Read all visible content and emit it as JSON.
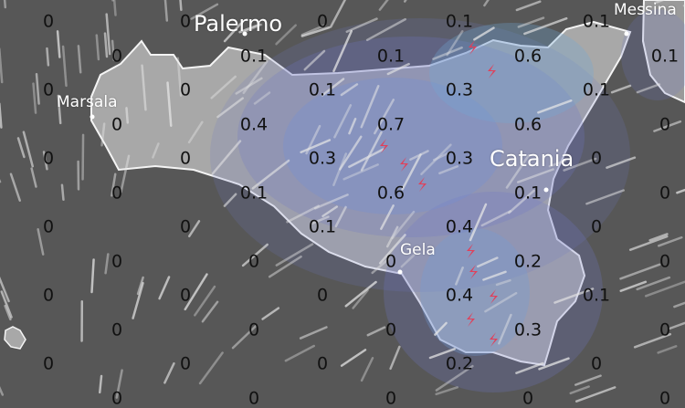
{
  "map": {
    "cities": [
      {
        "name": "Palermo",
        "size": "large"
      },
      {
        "name": "Marsala",
        "size": "small"
      },
      {
        "name": "Messina",
        "size": "small"
      },
      {
        "name": "Catania",
        "size": "large"
      },
      {
        "name": "Gela",
        "size": "small"
      }
    ],
    "grid_values": [
      [
        "0",
        "0",
        "0",
        "0.1",
        "0.1"
      ],
      [
        "0",
        "0.1",
        "0.1",
        "0.6",
        "0.1"
      ],
      [
        "0",
        "0",
        "0.1",
        "0.3",
        "0.1"
      ],
      [
        "0",
        "0.4",
        "0.7",
        "0.6",
        "0"
      ],
      [
        "0",
        "0",
        "0.3",
        "0.3",
        "0"
      ],
      [
        "0",
        "0.1",
        "0.6",
        "0.1",
        "0"
      ],
      [
        "0",
        "0",
        "0.1",
        "0.4",
        "0"
      ],
      [
        "0",
        "0",
        "0",
        "0.2",
        "0"
      ],
      [
        "0",
        "0",
        "0",
        "0.4",
        "0.1"
      ],
      [
        "0",
        "0",
        "0",
        "0.3",
        "0"
      ],
      [
        "0",
        "0",
        "0",
        "0.2",
        "0"
      ],
      [
        "0",
        "0",
        "0",
        "0",
        "0"
      ]
    ],
    "icons": {
      "lightning": "lightning-icon",
      "wind": "wind-streak"
    },
    "colors": {
      "sea": "#575757",
      "land": "#a9a9a9",
      "precip": "#6f78c8",
      "lightning": "#e0405a"
    }
  }
}
